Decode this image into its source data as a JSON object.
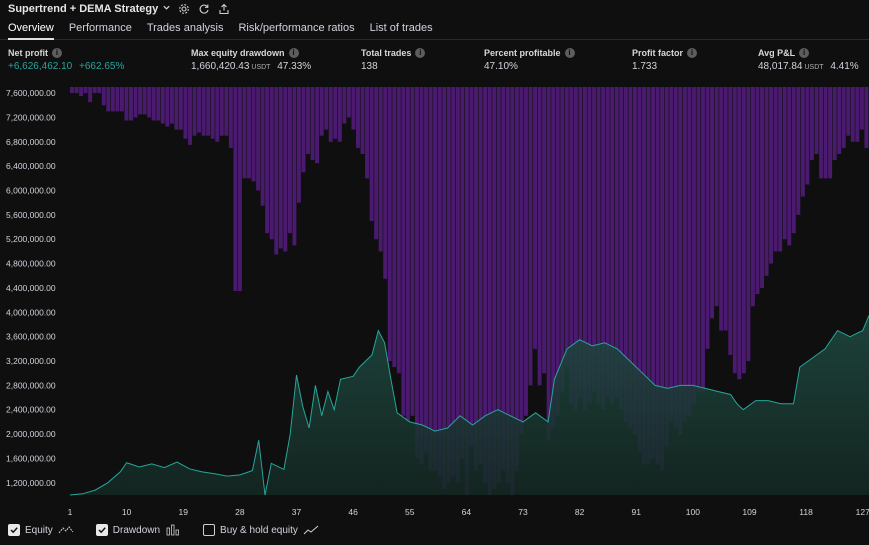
{
  "header": {
    "title": "Supertrend + DEMA Strategy",
    "icons": [
      "chevron-down-icon",
      "settings-gear-icon",
      "reload-icon",
      "export-icon"
    ]
  },
  "tabs": [
    {
      "label": "Overview",
      "active": true
    },
    {
      "label": "Performance",
      "active": false
    },
    {
      "label": "Trades analysis",
      "active": false
    },
    {
      "label": "Risk/performance ratios",
      "active": false
    },
    {
      "label": "List of trades",
      "active": false
    }
  ],
  "stats": {
    "net_profit": {
      "label": "Net profit",
      "value": "+6,626,462.10",
      "unit": "",
      "pct": "+662.65%"
    },
    "max_drawdown": {
      "label": "Max equity drawdown",
      "value": "1,660,420.43",
      "unit": "USDT",
      "pct": "47.33%"
    },
    "total_trades": {
      "label": "Total trades",
      "value": "138"
    },
    "percent_profitable": {
      "label": "Percent profitable",
      "value": "47.10%"
    },
    "profit_factor": {
      "label": "Profit factor",
      "value": "1.733"
    },
    "avg_pnl": {
      "label": "Avg P&L",
      "value": "48,017.84",
      "unit": "USDT",
      "pct": "4.41%"
    }
  },
  "colors": {
    "positive": "#26a69a",
    "equity_line": "#26a69a",
    "drawdown_bar": "#4a1a6e",
    "background": "#0f0f0f"
  },
  "legend": {
    "equity": {
      "label": "Equity",
      "checked": true
    },
    "drawdown": {
      "label": "Drawdown",
      "checked": true
    },
    "buy_hold": {
      "label": "Buy & hold equity",
      "checked": false
    }
  },
  "chart_data": {
    "type": "area",
    "y_ticks": [
      "7,600,000.00",
      "7,200,000.00",
      "6,800,000.00",
      "6,400,000.00",
      "6,000,000.00",
      "5,600,000.00",
      "5,200,000.00",
      "4,800,000.00",
      "4,400,000.00",
      "4,000,000.00",
      "3,600,000.00",
      "3,200,000.00",
      "2,800,000.00",
      "2,400,000.00",
      "2,000,000.00",
      "1,600,000.00",
      "1,200,000.00"
    ],
    "x_ticks": [
      "1",
      "10",
      "19",
      "28",
      "37",
      "46",
      "55",
      "64",
      "73",
      "82",
      "91",
      "100",
      "109",
      "118",
      "127"
    ],
    "ylim": [
      1000000,
      7700000
    ],
    "xlim": [
      1,
      128
    ],
    "equity": [
      [
        1,
        1000000
      ],
      [
        3,
        1020000
      ],
      [
        5,
        1080000
      ],
      [
        7,
        1200000
      ],
      [
        9,
        1380000
      ],
      [
        10,
        1530000
      ],
      [
        12,
        1460000
      ],
      [
        14,
        1510000
      ],
      [
        16,
        1450000
      ],
      [
        18,
        1540000
      ],
      [
        20,
        1430000
      ],
      [
        22,
        1380000
      ],
      [
        24,
        1350000
      ],
      [
        26,
        1310000
      ],
      [
        28,
        1330000
      ],
      [
        30,
        1400000
      ],
      [
        31,
        1900000
      ],
      [
        32,
        1000000
      ],
      [
        33,
        1520000
      ],
      [
        35,
        1420000
      ],
      [
        36,
        2000000
      ],
      [
        37,
        2970000
      ],
      [
        38,
        2450000
      ],
      [
        39,
        2100000
      ],
      [
        40,
        2800000
      ],
      [
        41,
        2300000
      ],
      [
        42,
        2700000
      ],
      [
        43,
        2400000
      ],
      [
        44,
        2900000
      ],
      [
        46,
        2950000
      ],
      [
        47,
        3100000
      ],
      [
        49,
        3300000
      ],
      [
        50,
        3700000
      ],
      [
        51,
        3500000
      ],
      [
        52,
        2900000
      ],
      [
        53,
        2350000
      ],
      [
        55,
        2200000
      ],
      [
        57,
        2150000
      ],
      [
        59,
        2050000
      ],
      [
        61,
        2100000
      ],
      [
        63,
        2300000
      ],
      [
        65,
        2150000
      ],
      [
        67,
        2300000
      ],
      [
        69,
        2400000
      ],
      [
        71,
        2300000
      ],
      [
        73,
        2200000
      ],
      [
        75,
        2350000
      ],
      [
        77,
        2200000
      ],
      [
        78,
        2900000
      ],
      [
        80,
        3400000
      ],
      [
        82,
        3550000
      ],
      [
        84,
        3450000
      ],
      [
        86,
        3500000
      ],
      [
        88,
        3400000
      ],
      [
        90,
        3200000
      ],
      [
        92,
        3000000
      ],
      [
        94,
        2800000
      ],
      [
        96,
        2750000
      ],
      [
        98,
        2800000
      ],
      [
        100,
        2800000
      ],
      [
        102,
        2750000
      ],
      [
        104,
        2700000
      ],
      [
        106,
        2650000
      ],
      [
        107,
        2500000
      ],
      [
        108,
        2400000
      ],
      [
        110,
        2550000
      ],
      [
        112,
        2550000
      ],
      [
        114,
        2500000
      ],
      [
        116,
        2500000
      ],
      [
        117,
        3100000
      ],
      [
        119,
        3250000
      ],
      [
        121,
        3400000
      ],
      [
        123,
        3700000
      ],
      [
        125,
        3600000
      ],
      [
        126,
        3650000
      ],
      [
        127,
        3700000
      ],
      [
        128,
        3950000
      ]
    ],
    "drawdown": [
      100000,
      100000,
      150000,
      100000,
      250000,
      100000,
      100000,
      300000,
      400000,
      400000,
      400000,
      400000,
      550000,
      550000,
      500000,
      450000,
      450000,
      500000,
      550000,
      550000,
      600000,
      650000,
      600000,
      700000,
      700000,
      850000,
      950000,
      800000,
      750000,
      800000,
      800000,
      850000,
      900000,
      800000,
      800000,
      1000000,
      3350000,
      3350000,
      1500000,
      1500000,
      1550000,
      1700000,
      1950000,
      2400000,
      2500000,
      2750000,
      2650000,
      2700000,
      2400000,
      2600000,
      1900000,
      1400000,
      1100000,
      1200000,
      1250000,
      800000,
      700000,
      900000,
      850000,
      900000,
      600000,
      500000,
      700000,
      1000000,
      1100000,
      1500000,
      2200000,
      2500000,
      2700000,
      3150000,
      4500000,
      4600000,
      4700000,
      5400000,
      5500000,
      5400000,
      6100000,
      6200000,
      6000000,
      6300000,
      6300000,
      6400000,
      6600000,
      6500000,
      6400000,
      6500000,
      6100000,
      6700000,
      5900000,
      6300000,
      6200000,
      6500000,
      6700000,
      6600000,
      6500000,
      6300000,
      6500000,
      6700000,
      6300000,
      5700000,
      5400000,
      4900000,
      4300000,
      4900000,
      4700000,
      5800000,
      5600000,
      5400000,
      5000000,
      4600000,
      5200000,
      5300000,
      5100000,
      5300000,
      5200000,
      5000000,
      5200000,
      5300000,
      5100000,
      5200000,
      5100000,
      5300000,
      5500000,
      5600000,
      5700000,
      6000000,
      6200000,
      6200000,
      6100000,
      6200000,
      6300000,
      5900000,
      5500000,
      5600000,
      5700000,
      5500000,
      5400000,
      5200000,
      5000000,
      5000000,
      4300000,
      3800000,
      3600000,
      4000000,
      4000000,
      4400000,
      4700000,
      4800000,
      4700000,
      4500000,
      3600000,
      3400000,
      3300000,
      3100000,
      2900000,
      2700000,
      2700000,
      2500000,
      2600000,
      2400000,
      2100000,
      1800000,
      1600000,
      1200000,
      1100000,
      1500000,
      1500000,
      1500000,
      1200000,
      1100000,
      1000000,
      800000,
      900000,
      900000,
      700000,
      1000000
    ]
  }
}
